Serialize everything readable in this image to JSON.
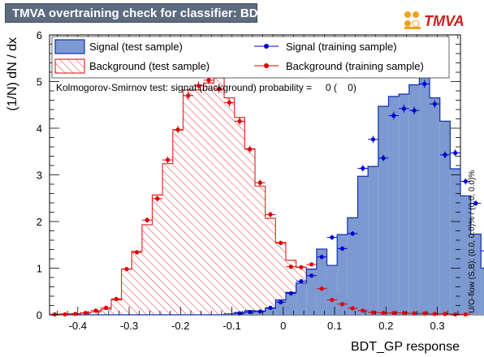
{
  "header": {
    "title": "TMVA overtraining check for classifier: BDT_GP",
    "logo_text": "TMVA"
  },
  "colors": {
    "signal_fill": "#7d99d1",
    "signal_line": "#1030b0",
    "background_hatch": "#e03030",
    "signal_points": "#0000d0",
    "background_points": "#e00000",
    "title_bar": "#5b6b80"
  },
  "chart_data": {
    "type": "histogram",
    "xlabel": "BDT_GP response",
    "ylabel": "(1/N) dN / dx",
    "xlim": [
      -0.455,
      0.345
    ],
    "ylim": [
      0,
      6.0
    ],
    "x_ticks": [
      "-0.4",
      "-0.3",
      "-0.2",
      "-0.1",
      "0",
      "0.1",
      "0.2",
      "0.3"
    ],
    "y_ticks": [
      "0",
      "1",
      "2",
      "3",
      "4",
      "5",
      "6"
    ],
    "ks_text": "Kolmogorov-Smirnov test: signal (background) probability =     0 (    0)",
    "side_note": "U/O-flow (S,B): (0.0, 0.0)% / (0.0, 0.0)%",
    "legend": [
      {
        "label": "Signal (test sample)",
        "style": "signal-fill"
      },
      {
        "label": "Signal (training sample)",
        "style": "signal-point"
      },
      {
        "label": "Background (test sample)",
        "style": "background-hatch"
      },
      {
        "label": "Background (training sample)",
        "style": "background-point"
      }
    ],
    "bin_edges_range": [
      -0.455,
      0.345
    ],
    "bin_width": 0.02,
    "series": [
      {
        "name": "Signal (test sample)",
        "values": [
          0,
          0,
          0,
          0,
          0,
          0,
          0,
          0,
          0,
          0,
          0,
          0,
          0,
          0,
          0,
          0,
          0,
          0.02,
          0.05,
          0.09,
          0.08,
          0.14,
          0.32,
          0.48,
          0.68,
          0.98,
          1.41,
          1.06,
          1.72,
          2.08,
          2.97,
          3.18,
          4.47,
          4.68,
          4.73,
          4.93,
          5.23,
          4.65,
          4.15,
          3.13,
          2.55,
          1.73,
          1.0,
          0.1,
          0.07,
          0.04
        ]
      },
      {
        "name": "Background (test sample)",
        "values": [
          0.01,
          0.02,
          0.02,
          0.04,
          0.06,
          0.12,
          0.32,
          0.98,
          1.36,
          1.93,
          2.57,
          3.24,
          3.96,
          4.82,
          4.82,
          4.97,
          5.08,
          4.65,
          4.23,
          3.56,
          2.76,
          2.07,
          1.55,
          1.17,
          1.02,
          0.83,
          0.68,
          0.45,
          0.33,
          0.18,
          0.12,
          0.08,
          0.05,
          0.03,
          0.03,
          0.03,
          0.02,
          0.02,
          0,
          0,
          0,
          0,
          0,
          0,
          0,
          0
        ]
      },
      {
        "name": "Signal (training sample)",
        "values": [
          0,
          0,
          0,
          0,
          0,
          0,
          0,
          0,
          0,
          0,
          0,
          0,
          0,
          0,
          0,
          0,
          0,
          0,
          0.03,
          0.06,
          0.07,
          0.15,
          0.27,
          0.46,
          0.72,
          0.84,
          1.24,
          1.66,
          1.42,
          1.74,
          3.14,
          3.76,
          3.36,
          4.27,
          4.42,
          4.38,
          4.95,
          4.52,
          3.43,
          3.47,
          2.86,
          2.39,
          1.37,
          0.66,
          0.32,
          0.11
        ]
      },
      {
        "name": "Background (training sample)",
        "values": [
          0.01,
          0.01,
          0.02,
          0.04,
          0.09,
          0.15,
          0.34,
          0.98,
          1.34,
          2.03,
          2.49,
          3.32,
          3.97,
          4.7,
          4.91,
          5.03,
          4.84,
          4.55,
          4.15,
          3.55,
          2.83,
          2.15,
          1.54,
          1.03,
          1.02,
          1.08,
          0.56,
          0.32,
          0.23,
          0.14,
          0.09,
          0.05,
          0.04,
          0.04,
          0.04,
          0.03,
          0.03,
          0.02,
          0.02,
          0.01,
          0.01,
          0,
          0,
          0,
          0,
          0
        ]
      }
    ]
  }
}
